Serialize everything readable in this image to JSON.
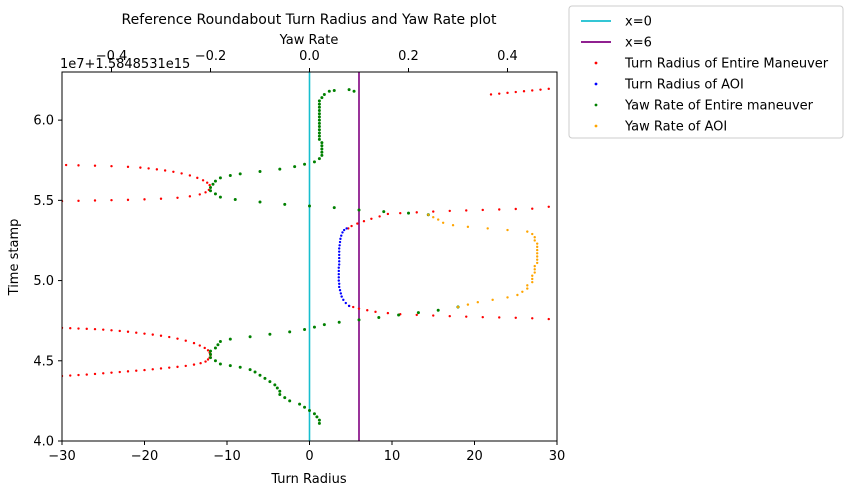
{
  "chart_data": {
    "type": "scatter",
    "title": "Reference Roundabout Turn Radius and Yaw Rate plot",
    "xlabel": "Turn Radius",
    "x2label": "Yaw Rate",
    "ylabel": "Time stamp",
    "y_offset_label": "1e7+1.5848531e15",
    "xlim": [
      -30,
      30
    ],
    "x2lim": [
      -0.5,
      0.5
    ],
    "ylim": [
      4.0,
      6.3
    ],
    "xticks": [
      -30,
      -20,
      -10,
      0,
      10,
      20,
      30
    ],
    "xtick_labels": [
      "−30",
      "−20",
      "−10",
      "0",
      "10",
      "20",
      "30"
    ],
    "x2ticks": [
      -0.4,
      -0.2,
      0.0,
      0.2,
      0.4
    ],
    "x2tick_labels": [
      "−0.4",
      "−0.2",
      "0.0",
      "0.2",
      "0.4"
    ],
    "yticks": [
      4.0,
      4.5,
      5.0,
      5.5,
      6.0
    ],
    "ytick_labels": [
      "4.0",
      "4.5",
      "5.0",
      "5.5",
      "6.0"
    ],
    "legend_position": "outside-right-top",
    "vlines": [
      {
        "name": "x=0",
        "x": 0,
        "color": "#17becf"
      },
      {
        "name": "x=6",
        "x": 6,
        "color": "#800080"
      }
    ],
    "series": [
      {
        "name": "Turn Radius of Entire Maneuver",
        "axis": "x",
        "color": "#ff0000",
        "points": [
          [
            -30,
            4.405
          ],
          [
            -29,
            4.408
          ],
          [
            -28,
            4.411
          ],
          [
            -27,
            4.414
          ],
          [
            -26,
            4.418
          ],
          [
            -25,
            4.422
          ],
          [
            -24,
            4.426
          ],
          [
            -23,
            4.43
          ],
          [
            -22,
            4.434
          ],
          [
            -21,
            4.438
          ],
          [
            -20,
            4.442
          ],
          [
            -19,
            4.447
          ],
          [
            -18,
            4.452
          ],
          [
            -17,
            4.457
          ],
          [
            -16,
            4.462
          ],
          [
            -15,
            4.468
          ],
          [
            -14,
            4.476
          ],
          [
            -13.2,
            4.485
          ],
          [
            -12.6,
            4.495
          ],
          [
            -12.3,
            4.508
          ],
          [
            -12.1,
            4.52
          ],
          [
            -12.0,
            4.535
          ],
          [
            -12.1,
            4.55
          ],
          [
            -12.3,
            4.565
          ],
          [
            -12.7,
            4.58
          ],
          [
            -13.3,
            4.595
          ],
          [
            -14,
            4.61
          ],
          [
            -15,
            4.625
          ],
          [
            -16,
            4.638
          ],
          [
            -17,
            4.648
          ],
          [
            -18,
            4.656
          ],
          [
            -19,
            4.663
          ],
          [
            -20,
            4.669
          ],
          [
            -21,
            4.675
          ],
          [
            -22,
            4.681
          ],
          [
            -23,
            4.686
          ],
          [
            -24,
            4.69
          ],
          [
            -25,
            4.694
          ],
          [
            -26,
            4.697
          ],
          [
            -27,
            4.699
          ],
          [
            -28,
            4.701
          ],
          [
            -29,
            4.703
          ],
          [
            -30,
            4.705
          ],
          [
            29,
            4.76
          ],
          [
            27,
            4.765
          ],
          [
            25,
            4.768
          ],
          [
            23,
            4.77
          ],
          [
            21,
            4.772
          ],
          [
            19,
            4.775
          ],
          [
            17,
            4.778
          ],
          [
            15,
            4.782
          ],
          [
            13,
            4.786
          ],
          [
            11,
            4.79
          ],
          [
            9.5,
            4.797
          ],
          [
            8,
            4.805
          ],
          [
            7,
            4.815
          ],
          [
            6,
            4.825
          ],
          [
            5.3,
            4.835
          ],
          [
            4.8,
            4.842
          ],
          [
            4.7,
            5.325
          ],
          [
            5.1,
            5.34
          ],
          [
            5.8,
            5.355
          ],
          [
            6.6,
            5.37
          ],
          [
            7.5,
            5.385
          ],
          [
            8.5,
            5.4
          ],
          [
            9.5,
            5.415
          ],
          [
            11,
            5.42
          ],
          [
            13,
            5.425
          ],
          [
            15,
            5.43
          ],
          [
            17,
            5.434
          ],
          [
            19,
            5.437
          ],
          [
            21,
            5.44
          ],
          [
            23,
            5.443
          ],
          [
            25,
            5.446
          ],
          [
            27,
            5.448
          ],
          [
            29,
            5.46
          ],
          [
            -30,
            5.495
          ],
          [
            -28,
            5.497
          ],
          [
            -26,
            5.499
          ],
          [
            -24,
            5.501
          ],
          [
            -22,
            5.503
          ],
          [
            -20,
            5.506
          ],
          [
            -18,
            5.51
          ],
          [
            -16,
            5.516
          ],
          [
            -14.5,
            5.525
          ],
          [
            -13.3,
            5.537
          ],
          [
            -12.6,
            5.55
          ],
          [
            -12.2,
            5.565
          ],
          [
            -12.0,
            5.58
          ],
          [
            -12.1,
            5.595
          ],
          [
            -12.4,
            5.61
          ],
          [
            -12.9,
            5.625
          ],
          [
            -13.6,
            5.64
          ],
          [
            -14.5,
            5.655
          ],
          [
            -15.5,
            5.668
          ],
          [
            -16.5,
            5.678
          ],
          [
            -17.5,
            5.686
          ],
          [
            -18.5,
            5.693
          ],
          [
            -19.5,
            5.699
          ],
          [
            -20.5,
            5.704
          ],
          [
            -22,
            5.709
          ],
          [
            -24,
            5.713
          ],
          [
            -26,
            5.716
          ],
          [
            -28,
            5.718
          ],
          [
            -29.5,
            5.72
          ],
          [
            22,
            6.16
          ],
          [
            23,
            6.165
          ],
          [
            24,
            6.17
          ],
          [
            25,
            6.175
          ],
          [
            26,
            6.18
          ],
          [
            27,
            6.185
          ],
          [
            28,
            6.19
          ],
          [
            29,
            6.195
          ]
        ]
      },
      {
        "name": "Turn Radius of AOI",
        "axis": "x",
        "color": "#0000ff",
        "points": [
          [
            4.8,
            4.842
          ],
          [
            4.4,
            4.86
          ],
          [
            4.1,
            4.88
          ],
          [
            3.9,
            4.9
          ],
          [
            3.8,
            4.92
          ],
          [
            3.7,
            4.94
          ],
          [
            3.6,
            4.96
          ],
          [
            3.6,
            4.98
          ],
          [
            3.55,
            5.0
          ],
          [
            3.55,
            5.02
          ],
          [
            3.55,
            5.04
          ],
          [
            3.55,
            5.06
          ],
          [
            3.55,
            5.08
          ],
          [
            3.6,
            5.1
          ],
          [
            3.6,
            5.12
          ],
          [
            3.6,
            5.14
          ],
          [
            3.6,
            5.16
          ],
          [
            3.6,
            5.18
          ],
          [
            3.6,
            5.2
          ],
          [
            3.65,
            5.22
          ],
          [
            3.7,
            5.24
          ],
          [
            3.75,
            5.26
          ],
          [
            3.85,
            5.28
          ],
          [
            4.0,
            5.3
          ],
          [
            4.2,
            5.315
          ],
          [
            4.5,
            5.325
          ]
        ]
      },
      {
        "name": "Yaw Rate of Entire maneuver",
        "axis": "x2",
        "color": "#008000",
        "points": [
          [
            0.02,
            4.11
          ],
          [
            0.02,
            4.13
          ],
          [
            0.015,
            4.15
          ],
          [
            0.01,
            4.17
          ],
          [
            0.0,
            4.19
          ],
          [
            -0.01,
            4.21
          ],
          [
            -0.02,
            4.23
          ],
          [
            -0.04,
            4.25
          ],
          [
            -0.05,
            4.27
          ],
          [
            -0.06,
            4.29
          ],
          [
            -0.06,
            4.31
          ],
          [
            -0.065,
            4.33
          ],
          [
            -0.07,
            4.35
          ],
          [
            -0.08,
            4.37
          ],
          [
            -0.09,
            4.39
          ],
          [
            -0.1,
            4.41
          ],
          [
            -0.11,
            4.43
          ],
          [
            -0.12,
            4.445
          ],
          [
            -0.14,
            4.46
          ],
          [
            -0.16,
            4.47
          ],
          [
            -0.18,
            4.48
          ],
          [
            -0.19,
            4.5
          ],
          [
            -0.2,
            4.52
          ],
          [
            -0.2,
            4.54
          ],
          [
            -0.2,
            4.56
          ],
          [
            -0.19,
            4.58
          ],
          [
            -0.185,
            4.6
          ],
          [
            -0.18,
            4.62
          ],
          [
            -0.16,
            4.635
          ],
          [
            -0.12,
            4.65
          ],
          [
            -0.08,
            4.665
          ],
          [
            -0.04,
            4.68
          ],
          [
            -0.01,
            4.695
          ],
          [
            0.01,
            4.71
          ],
          [
            0.03,
            4.725
          ],
          [
            0.06,
            4.74
          ],
          [
            0.1,
            4.755
          ],
          [
            0.14,
            4.77
          ],
          [
            0.18,
            4.785
          ],
          [
            0.22,
            4.8
          ],
          [
            0.26,
            4.815
          ],
          [
            0.3,
            4.835
          ],
          [
            0.24,
            5.41
          ],
          [
            0.2,
            5.42
          ],
          [
            0.15,
            5.43
          ],
          [
            0.1,
            5.44
          ],
          [
            0.05,
            5.455
          ],
          [
            0.0,
            5.465
          ],
          [
            -0.05,
            5.475
          ],
          [
            -0.1,
            5.49
          ],
          [
            -0.15,
            5.505
          ],
          [
            -0.18,
            5.52
          ],
          [
            -0.19,
            5.54
          ],
          [
            -0.2,
            5.56
          ],
          [
            -0.2,
            5.58
          ],
          [
            -0.195,
            5.6
          ],
          [
            -0.19,
            5.62
          ],
          [
            -0.18,
            5.64
          ],
          [
            -0.16,
            5.655
          ],
          [
            -0.14,
            5.665
          ],
          [
            -0.1,
            5.68
          ],
          [
            -0.06,
            5.695
          ],
          [
            -0.03,
            5.71
          ],
          [
            -0.01,
            5.725
          ],
          [
            0.01,
            5.74
          ],
          [
            0.02,
            5.76
          ],
          [
            0.025,
            5.78
          ],
          [
            0.025,
            5.8
          ],
          [
            0.025,
            5.82
          ],
          [
            0.025,
            5.84
          ],
          [
            0.025,
            5.86
          ],
          [
            0.02,
            5.88
          ],
          [
            0.02,
            5.9
          ],
          [
            0.02,
            5.92
          ],
          [
            0.02,
            5.94
          ],
          [
            0.02,
            5.96
          ],
          [
            0.02,
            5.98
          ],
          [
            0.02,
            6.0
          ],
          [
            0.02,
            6.02
          ],
          [
            0.02,
            6.04
          ],
          [
            0.02,
            6.06
          ],
          [
            0.02,
            6.08
          ],
          [
            0.02,
            6.1
          ],
          [
            0.02,
            6.12
          ],
          [
            0.025,
            6.14
          ],
          [
            0.03,
            6.16
          ],
          [
            0.04,
            6.18
          ],
          [
            0.05,
            6.185
          ],
          [
            0.08,
            6.19
          ],
          [
            0.09,
            6.18
          ]
        ]
      },
      {
        "name": "Yaw Rate of AOI",
        "axis": "x2",
        "color": "#ffa500",
        "points": [
          [
            0.3,
            4.835
          ],
          [
            0.32,
            4.85
          ],
          [
            0.34,
            4.865
          ],
          [
            0.37,
            4.88
          ],
          [
            0.4,
            4.895
          ],
          [
            0.42,
            4.91
          ],
          [
            0.43,
            4.93
          ],
          [
            0.44,
            4.95
          ],
          [
            0.44,
            4.97
          ],
          [
            0.45,
            4.99
          ],
          [
            0.45,
            5.01
          ],
          [
            0.45,
            5.03
          ],
          [
            0.455,
            5.05
          ],
          [
            0.455,
            5.07
          ],
          [
            0.455,
            5.09
          ],
          [
            0.46,
            5.11
          ],
          [
            0.46,
            5.13
          ],
          [
            0.46,
            5.15
          ],
          [
            0.46,
            5.17
          ],
          [
            0.46,
            5.19
          ],
          [
            0.46,
            5.21
          ],
          [
            0.46,
            5.23
          ],
          [
            0.455,
            5.25
          ],
          [
            0.455,
            5.27
          ],
          [
            0.45,
            5.29
          ],
          [
            0.44,
            5.305
          ],
          [
            0.4,
            5.315
          ],
          [
            0.36,
            5.325
          ],
          [
            0.32,
            5.335
          ],
          [
            0.29,
            5.345
          ],
          [
            0.27,
            5.36
          ],
          [
            0.26,
            5.38
          ],
          [
            0.25,
            5.395
          ],
          [
            0.24,
            5.41
          ]
        ]
      }
    ]
  }
}
